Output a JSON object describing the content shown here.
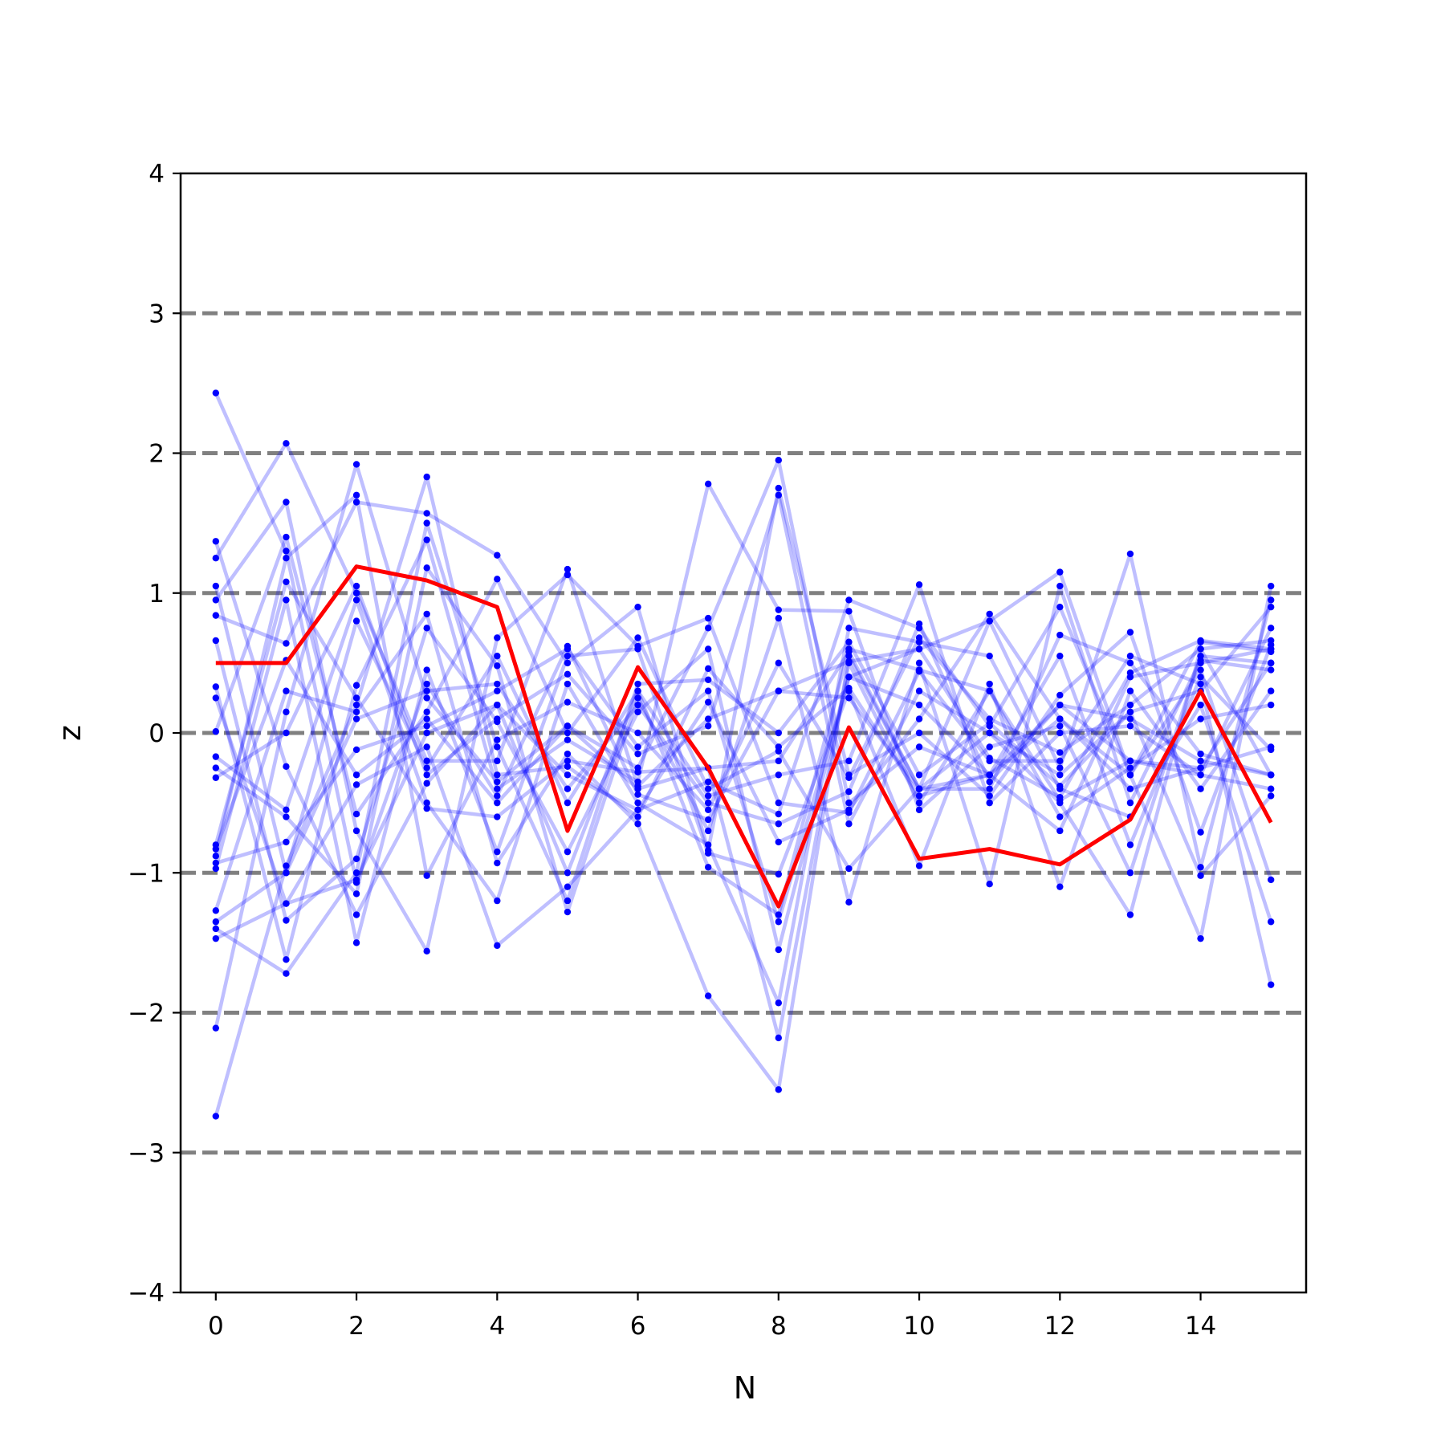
{
  "chart_data": {
    "type": "line",
    "xlabel": "N",
    "ylabel": "z",
    "xlim": [
      -0.5,
      15.5
    ],
    "ylim": [
      -4,
      4
    ],
    "x_ticks": [
      0,
      2,
      4,
      6,
      8,
      10,
      12,
      14
    ],
    "y_ticks": [
      -4,
      -3,
      -2,
      -1,
      0,
      1,
      2,
      3,
      4
    ],
    "x_tick_labels": [
      "0",
      "2",
      "4",
      "6",
      "8",
      "10",
      "12",
      "14"
    ],
    "y_tick_labels": [
      "−4",
      "−3",
      "−2",
      "−1",
      "0",
      "1",
      "2",
      "3",
      "4"
    ],
    "reference_lines": [
      -3,
      -2,
      -1,
      0,
      1,
      2,
      3
    ],
    "reference_line_color": "#808080",
    "grid": false,
    "legend": "none",
    "x": [
      0,
      1,
      2,
      3,
      4,
      5,
      6,
      7,
      8,
      9,
      10,
      11,
      12,
      13,
      14,
      15
    ],
    "highlight": {
      "color": "#ff0000",
      "values": [
        0.5,
        0.5,
        1.19,
        1.09,
        0.9,
        -0.7,
        0.47,
        -0.25,
        -1.24,
        0.04,
        -0.9,
        -0.83,
        -0.94,
        -0.62,
        0.3,
        -0.64
      ]
    },
    "background_series_color": "#0000ff",
    "background_series": [
      [
        2.43,
        1.3,
        -1.07,
        0.35,
        -0.45,
        0.62,
        -0.44,
        -0.62,
        0.3,
        0.51,
        0.6,
        -0.18,
        -0.46,
        0.43,
        0.66,
        0.6
      ],
      [
        -2.74,
        -0.95,
        0.2,
        1.83,
        -0.3,
        -0.24,
        -0.6,
        0.46,
        -0.1,
        0.32,
        -0.45,
        -0.3,
        0.2,
        0.1,
        -0.2,
        -0.3
      ],
      [
        -2.11,
        0.15,
        1.92,
        0.25,
        -0.35,
        0.05,
        -0.25,
        0.75,
        1.95,
        -0.5,
        -0.1,
        -0.3,
        0.1,
        -0.4,
        -0.25,
        0.5
      ],
      [
        1.37,
        -0.24,
        -1.3,
        -0.36,
        0.2,
        -1.0,
        0.3,
        -0.96,
        -1.3,
        0.6,
        0.45,
        0.3,
        -0.48,
        -0.2,
        -0.3,
        -0.4
      ],
      [
        1.25,
        2.07,
        1.0,
        -0.2,
        -0.2,
        1.17,
        -0.38,
        0.1,
        0.3,
        0.25,
        -0.4,
        0.8,
        1.15,
        -0.3,
        -1.47,
        1.05
      ],
      [
        0.95,
        1.65,
        -0.7,
        -1.56,
        0.68,
        1.13,
        0.62,
        0.82,
        -0.5,
        -0.57,
        0.44,
        -0.2,
        -0.2,
        0.55,
        0.35,
        -1.8
      ],
      [
        0.84,
        0.64,
        1.65,
        1.57,
        1.27,
        0.5,
        0.9,
        -0.84,
        1.75,
        -0.3,
        0.0,
        -0.45,
        0.27,
        0.72,
        -0.71,
        0.63
      ],
      [
        0.66,
        -1.34,
        -0.9,
        0.75,
        0.08,
        -0.85,
        0.15,
        0.6,
        -1.55,
        0.4,
        0.6,
        0.8,
        -0.25,
        1.28,
        -0.96,
        0.95
      ],
      [
        0.33,
        -1.62,
        0.34,
        1.38,
        -0.4,
        -0.05,
        -0.35,
        1.78,
        0.88,
        0.87,
        -0.55,
        -0.1,
        0.05,
        -1.0,
        0.55,
        0.5
      ],
      [
        0.25,
        -1.22,
        -0.37,
        -0.1,
        -1.52,
        -1.1,
        -0.55,
        -0.35,
        -0.58,
        0.95,
        0.75,
        0.05,
        0.9,
        -0.3,
        0.45,
        -1.05
      ],
      [
        0.01,
        1.4,
        -0.58,
        0.15,
        1.1,
        0.0,
        0.68,
        -0.4,
        -0.13,
        -0.97,
        -0.4,
        -0.4,
        0.7,
        0.5,
        -0.15,
        -0.3
      ],
      [
        -0.17,
        -0.55,
        0.95,
        -0.5,
        -1.2,
        0.35,
        -0.5,
        -0.8,
        -1.93,
        0.75,
        0.65,
        0.55,
        -0.4,
        -0.6,
        0.2,
        -1.35
      ],
      [
        -0.25,
        -0.6,
        -1.15,
        1.18,
        0.48,
        -1.28,
        0.25,
        -0.7,
        0.82,
        -1.21,
        0.5,
        -1.08,
        1.05,
        -0.5,
        0.52,
        0.45
      ],
      [
        -0.32,
        0.0,
        1.05,
        -0.3,
        0.1,
        0.42,
        -0.15,
        0.05,
        1.7,
        -0.65,
        0.3,
        0.0,
        -0.5,
        -1.3,
        0.6,
        -0.3
      ],
      [
        -0.8,
        1.08,
        0.25,
        -0.54,
        -0.6,
        -0.2,
        -0.28,
        -0.25,
        -2.18,
        0.5,
        -0.5,
        0.3,
        -0.6,
        -0.25,
        0.1,
        0.2
      ],
      [
        -0.88,
        1.25,
        1.7,
        -1.02,
        -0.05,
        0.22,
        0.0,
        -0.55,
        0.5,
        -0.32,
        0.68,
        0.1,
        -0.14,
        0.2,
        0.6,
        0.66
      ],
      [
        -0.93,
        -0.78,
        -0.12,
        0.05,
        0.3,
        0.6,
        -0.1,
        0.3,
        -1.35,
        0.4,
        0.2,
        -0.3,
        0.55,
        -0.8,
        0.4,
        -0.12
      ],
      [
        -0.97,
        0.95,
        -1.5,
        0.45,
        -0.85,
        0.55,
        0.6,
        -0.86,
        -1.01,
        0.3,
        -0.95,
        0.35,
        -1.1,
        0.3,
        -0.4,
        0.3
      ],
      [
        -1.27,
        0.3,
        0.15,
        0.85,
        -0.93,
        -0.15,
        -0.65,
        -1.88,
        -2.55,
        0.55,
        -0.4,
        -0.3,
        -0.7,
        0.4,
        0.5,
        0.6
      ],
      [
        -1.35,
        -1.0,
        0.1,
        0.3,
        0.35,
        -0.4,
        0.2,
        -0.5,
        -0.65,
        -0.42,
        0.78,
        -0.35,
        0.2,
        -0.2,
        -0.25,
        -0.1
      ],
      [
        -1.4,
        -1.72,
        -1.0,
        1.5,
        -0.1,
        -1.2,
        0.35,
        0.38,
        0.0,
        0.65,
        -0.3,
        0.07,
        -0.38,
        0.15,
        0.3,
        0.9
      ],
      [
        -1.47,
        -1.22,
        -1.05,
        0.0,
        0.2,
        -0.3,
        -0.55,
        0.22,
        -0.78,
        -0.55,
        0.1,
        0.85,
        0.1,
        -0.3,
        0.65,
        0.58
      ],
      [
        1.05,
        -1.0,
        0.8,
        -0.25,
        0.55,
        -0.5,
        0.3,
        -0.45,
        -0.3,
        -0.2,
        1.06,
        -0.5,
        0.0,
        0.05,
        -0.3,
        0.75
      ],
      [
        -0.83,
        0.52,
        -0.3,
        0.1,
        -0.5,
        0.05,
        -0.4,
        -0.25,
        -0.2,
        0.58,
        -0.4,
        0.0,
        -0.3,
        0.15,
        -1.02,
        -0.45
      ]
    ]
  }
}
